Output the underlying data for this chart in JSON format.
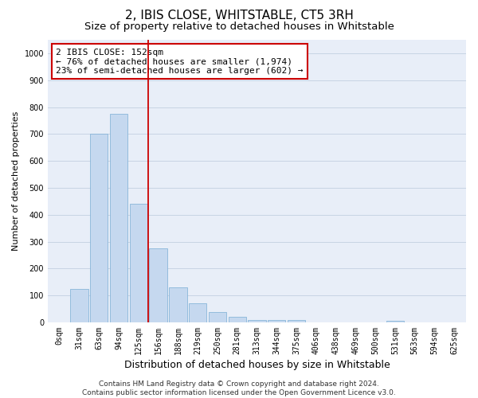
{
  "title": "2, IBIS CLOSE, WHITSTABLE, CT5 3RH",
  "subtitle": "Size of property relative to detached houses in Whitstable",
  "xlabel": "Distribution of detached houses by size in Whitstable",
  "ylabel": "Number of detached properties",
  "bar_labels": [
    "0sqm",
    "31sqm",
    "63sqm",
    "94sqm",
    "125sqm",
    "156sqm",
    "188sqm",
    "219sqm",
    "250sqm",
    "281sqm",
    "313sqm",
    "344sqm",
    "375sqm",
    "406sqm",
    "438sqm",
    "469sqm",
    "500sqm",
    "531sqm",
    "563sqm",
    "594sqm",
    "625sqm"
  ],
  "bar_values": [
    0,
    125,
    700,
    775,
    440,
    275,
    130,
    70,
    38,
    20,
    10,
    8,
    10,
    0,
    0,
    0,
    0,
    5,
    0,
    0,
    0
  ],
  "bar_color": "#c5d8ef",
  "bar_edgecolor": "#7aadd4",
  "grid_color": "#c8d4e4",
  "background_color": "#e8eef8",
  "vline_x": 4.5,
  "vline_color": "#cc0000",
  "annotation_text": "2 IBIS CLOSE: 152sqm\n← 76% of detached houses are smaller (1,974)\n23% of semi-detached houses are larger (602) →",
  "annotation_box_color": "#ffffff",
  "annotation_box_edgecolor": "#cc0000",
  "ylim": [
    0,
    1050
  ],
  "yticks": [
    0,
    100,
    200,
    300,
    400,
    500,
    600,
    700,
    800,
    900,
    1000
  ],
  "footer1": "Contains HM Land Registry data © Crown copyright and database right 2024.",
  "footer2": "Contains public sector information licensed under the Open Government Licence v3.0.",
  "title_fontsize": 11,
  "subtitle_fontsize": 9.5,
  "xlabel_fontsize": 9,
  "ylabel_fontsize": 8,
  "tick_fontsize": 7,
  "annotation_fontsize": 8,
  "footer_fontsize": 6.5
}
